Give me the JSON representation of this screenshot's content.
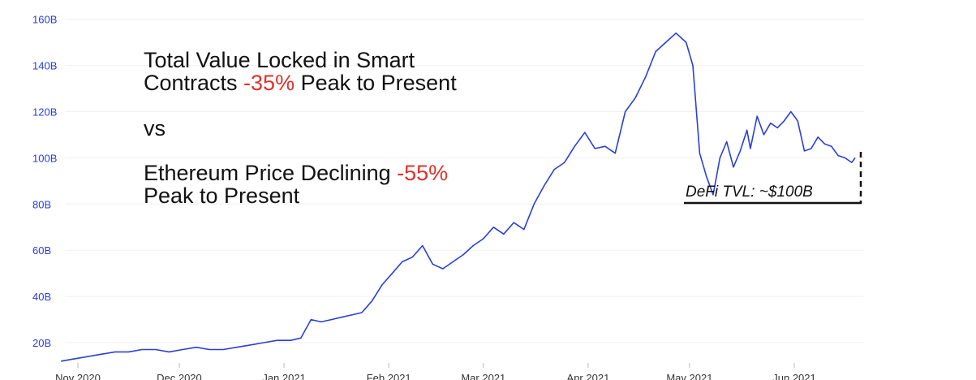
{
  "annotation": {
    "line1": "Total Value Locked in Smart",
    "line2_pre": "Contracts ",
    "line2_neg": "-35%",
    "line2_post": " Peak to Present",
    "vs": "vs",
    "line3_pre": "Ethereum Price Declining ",
    "line3_neg": "-55%",
    "line4": "Peak to Present",
    "callout": "DeFi TVL: ~$100B"
  },
  "colors": {
    "line": "#2b3fd6",
    "axis_tick": "#2a3de0",
    "negative": "#e0302a",
    "callout_marker": "#111111"
  },
  "chart_data": {
    "type": "line",
    "title": "",
    "xlabel": "",
    "ylabel": "",
    "ylim": [
      7,
      162
    ],
    "grid": true,
    "y_ticks": [
      {
        "value": 20,
        "label": "20B"
      },
      {
        "value": 40,
        "label": "40B"
      },
      {
        "value": 60,
        "label": "60B"
      },
      {
        "value": 80,
        "label": "80B"
      },
      {
        "value": 100,
        "label": "100B"
      },
      {
        "value": 120,
        "label": "120B"
      },
      {
        "value": 140,
        "label": "140B"
      },
      {
        "value": 160,
        "label": "160B"
      }
    ],
    "x_ticks": [
      {
        "date": "2020-11-01",
        "label": "Nov 2020"
      },
      {
        "date": "2020-12-01",
        "label": "Dec 2020"
      },
      {
        "date": "2021-01-01",
        "label": "Jan 2021"
      },
      {
        "date": "2021-02-01",
        "label": "Feb 2021"
      },
      {
        "date": "2021-03-01",
        "label": "Mar 2021"
      },
      {
        "date": "2021-04-01",
        "label": "Apr 2021"
      },
      {
        "date": "2021-05-01",
        "label": "May 2021"
      },
      {
        "date": "2021-06-01",
        "label": "Jun 2021"
      }
    ],
    "series": [
      {
        "x": [
          "2020-10-27",
          "2020-10-31",
          "2020-11-04",
          "2020-11-08",
          "2020-11-12",
          "2020-11-16",
          "2020-11-20",
          "2020-11-24",
          "2020-11-28",
          "2020-12-02",
          "2020-12-06",
          "2020-12-10",
          "2020-12-14",
          "2020-12-18",
          "2020-12-22",
          "2020-12-26",
          "2020-12-30",
          "2021-01-03",
          "2021-01-06",
          "2021-01-09",
          "2021-01-12",
          "2021-01-15",
          "2021-01-18",
          "2021-01-21",
          "2021-01-24",
          "2021-01-27",
          "2021-01-30",
          "2021-02-02",
          "2021-02-05",
          "2021-02-08",
          "2021-02-11",
          "2021-02-14",
          "2021-02-17",
          "2021-02-20",
          "2021-02-23",
          "2021-02-26",
          "2021-03-01",
          "2021-03-04",
          "2021-03-07",
          "2021-03-10",
          "2021-03-13",
          "2021-03-16",
          "2021-03-19",
          "2021-03-22",
          "2021-03-25",
          "2021-03-28",
          "2021-03-31",
          "2021-04-03",
          "2021-04-06",
          "2021-04-09",
          "2021-04-12",
          "2021-04-15",
          "2021-04-18",
          "2021-04-21",
          "2021-04-24",
          "2021-04-27",
          "2021-04-30",
          "2021-05-02",
          "2021-05-04",
          "2021-05-06",
          "2021-05-08",
          "2021-05-10",
          "2021-05-12",
          "2021-05-14",
          "2021-05-16",
          "2021-05-18",
          "2021-05-19",
          "2021-05-21",
          "2021-05-23",
          "2021-05-25",
          "2021-05-27",
          "2021-05-29",
          "2021-05-31",
          "2021-06-02",
          "2021-06-04",
          "2021-06-06",
          "2021-06-08",
          "2021-06-10",
          "2021-06-12",
          "2021-06-14",
          "2021-06-16",
          "2021-06-18",
          "2021-06-19"
        ],
        "values": [
          12,
          13,
          14,
          15,
          16,
          16,
          17,
          17,
          16,
          17,
          18,
          17,
          17,
          18,
          19,
          20,
          21,
          21,
          22,
          30,
          29,
          30,
          31,
          32,
          33,
          38,
          45,
          50,
          55,
          57,
          62,
          54,
          52,
          55,
          58,
          62,
          65,
          70,
          67,
          72,
          69,
          80,
          88,
          95,
          98,
          105,
          111,
          104,
          105,
          102,
          120,
          126,
          135,
          146,
          150,
          154,
          150,
          140,
          102,
          92,
          84,
          100,
          107,
          96,
          103,
          112,
          104,
          118,
          110,
          115,
          113,
          116,
          120,
          116,
          103,
          104,
          109,
          106,
          105,
          101,
          100,
          98,
          100
        ]
      }
    ]
  }
}
